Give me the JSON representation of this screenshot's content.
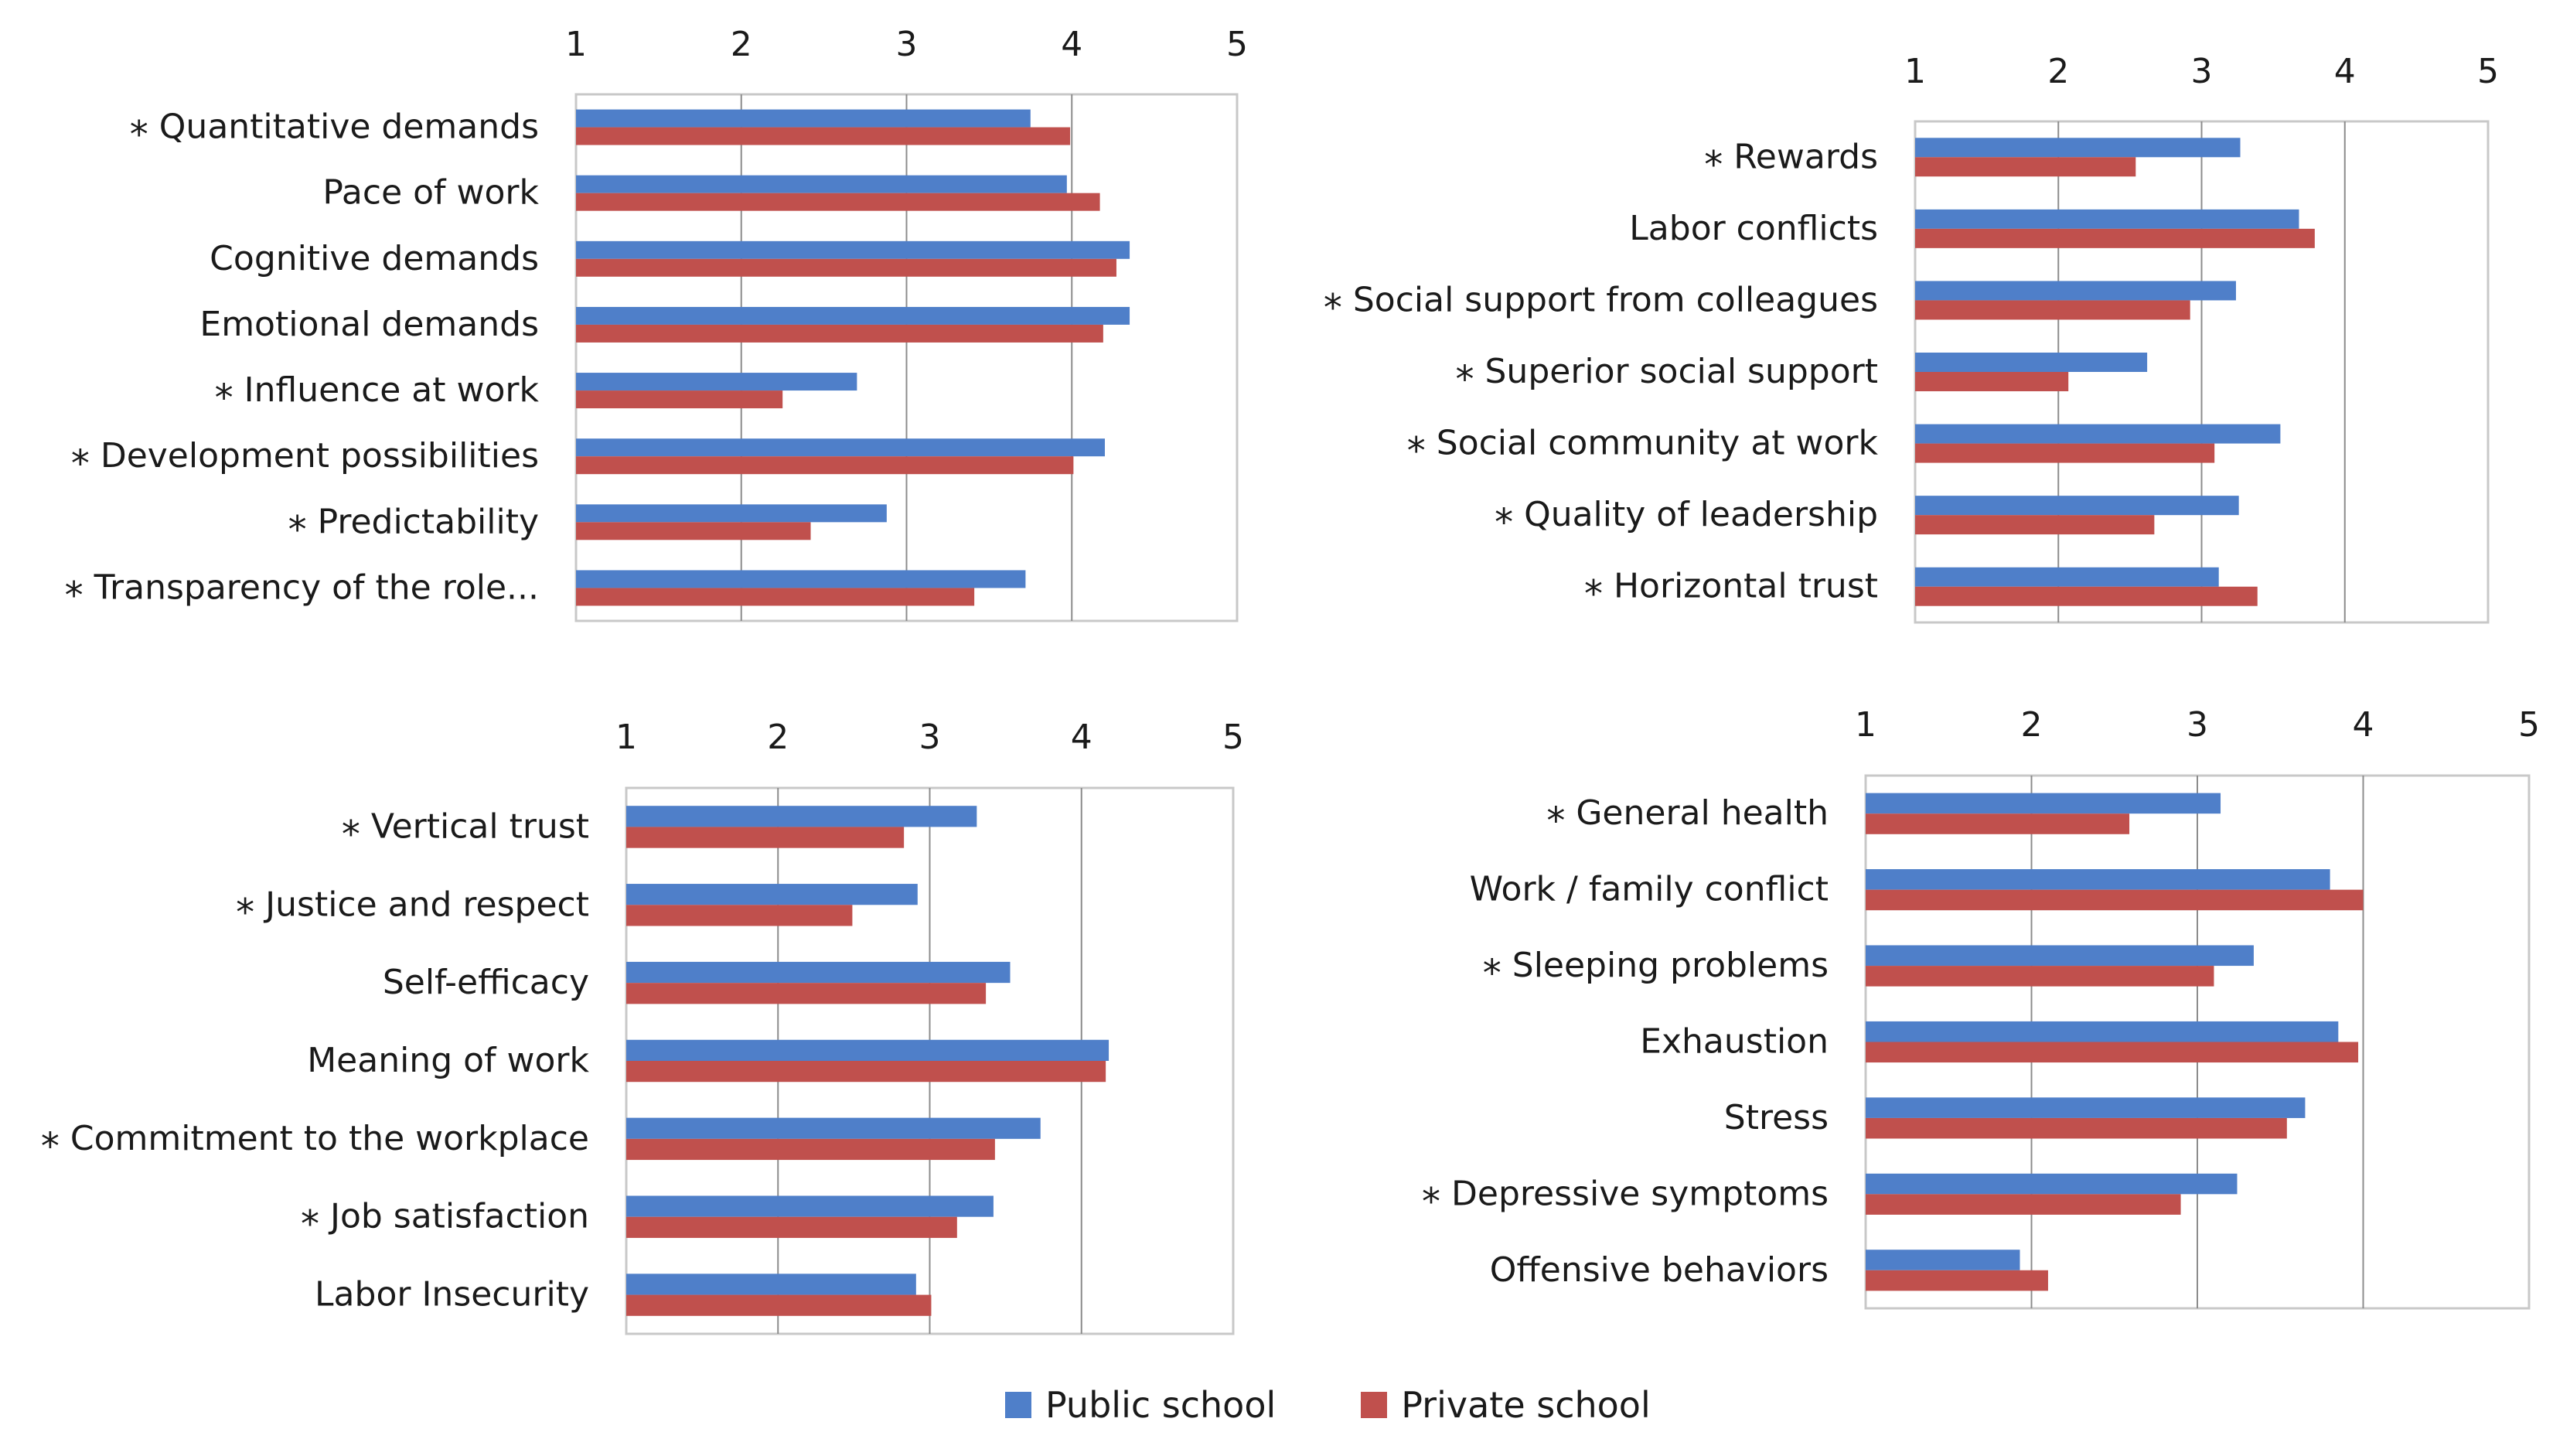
{
  "colors": {
    "public": "#4f7fc9",
    "private": "#c0504d",
    "grid": "#8c8c8c",
    "text": "#1a1a1a"
  },
  "legend": {
    "public_label": "Public school",
    "private_label": "Private school"
  },
  "chart_data": [
    {
      "type": "bar",
      "title": "",
      "xlim": [
        1,
        5
      ],
      "ticks": [
        "1",
        "2",
        "3",
        "4",
        "5"
      ],
      "categories": [
        "Quantitative demands",
        "Pace of work",
        "Cognitive demands",
        "Emotional demands",
        "Influence at work",
        "Development possibilities",
        "Predictability",
        "Transparency of the role..."
      ],
      "marked": [
        true,
        false,
        false,
        false,
        true,
        true,
        true,
        true
      ],
      "series": [
        {
          "name": "Public school",
          "values": [
            3.75,
            3.97,
            4.35,
            4.35,
            2.7,
            4.2,
            2.88,
            3.72
          ]
        },
        {
          "name": "Private school",
          "values": [
            3.99,
            4.17,
            4.27,
            4.19,
            2.25,
            4.01,
            2.42,
            3.41
          ]
        }
      ]
    },
    {
      "type": "bar",
      "title": "",
      "xlim": [
        1,
        5
      ],
      "ticks": [
        "1",
        "2",
        "3",
        "4",
        "5"
      ],
      "categories": [
        "Rewards",
        "Labor conflicts",
        "Social support from colleagues",
        "Superior social support",
        "Social community at work",
        "Quality of leadership",
        "Horizontal trust"
      ],
      "marked": [
        true,
        false,
        true,
        true,
        true,
        true,
        true
      ],
      "series": [
        {
          "name": "Public school",
          "values": [
            3.27,
            3.68,
            3.24,
            2.62,
            3.55,
            3.26,
            3.12
          ]
        },
        {
          "name": "Private school",
          "values": [
            2.54,
            3.79,
            2.92,
            2.07,
            3.09,
            2.67,
            3.39
          ]
        }
      ]
    },
    {
      "type": "bar",
      "title": "",
      "xlim": [
        1,
        5
      ],
      "ticks": [
        "1",
        "2",
        "3",
        "4",
        "5"
      ],
      "categories": [
        "Vertical trust",
        "Justice and respect",
        "Self-efficacy",
        "Meaning of work",
        "Commitment to the workplace",
        "Job satisfaction",
        "Labor Insecurity"
      ],
      "marked": [
        true,
        true,
        false,
        false,
        true,
        true,
        false
      ],
      "series": [
        {
          "name": "Public school",
          "values": [
            3.31,
            2.92,
            3.53,
            4.18,
            3.73,
            3.42,
            2.91
          ]
        },
        {
          "name": "Private school",
          "values": [
            2.83,
            2.49,
            3.37,
            4.16,
            3.43,
            3.18,
            3.01
          ]
        }
      ]
    },
    {
      "type": "bar",
      "title": "",
      "xlim": [
        1,
        5
      ],
      "ticks": [
        "1",
        "2",
        "3",
        "4",
        "5"
      ],
      "categories": [
        "General health",
        "Work / family conflict",
        "Sleeping problems",
        "Exhaustion",
        "Stress",
        "Depressive symptoms",
        "Offensive behaviors"
      ],
      "marked": [
        true,
        false,
        true,
        false,
        false,
        true,
        false
      ],
      "series": [
        {
          "name": "Public school",
          "values": [
            3.14,
            3.8,
            3.34,
            3.85,
            3.65,
            3.24,
            1.93
          ]
        },
        {
          "name": "Private school",
          "values": [
            2.59,
            4.0,
            3.1,
            3.97,
            3.54,
            2.9,
            2.1
          ]
        }
      ]
    }
  ]
}
